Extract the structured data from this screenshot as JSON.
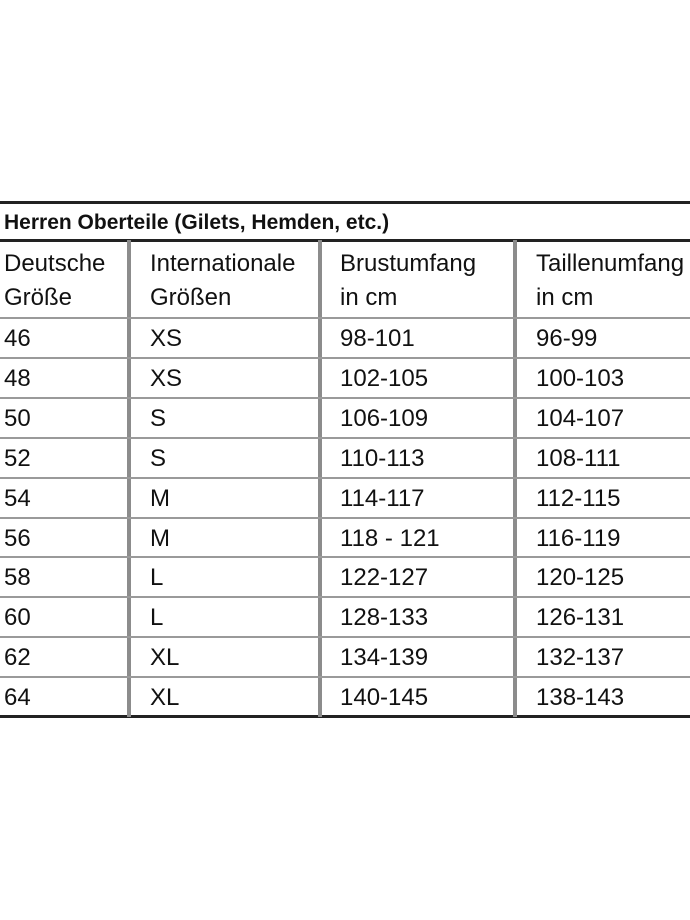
{
  "table": {
    "title": "Herren Oberteile (Gilets, Hemden, etc.)",
    "header": [
      [
        "Deutsche",
        "Größe"
      ],
      [
        "Internationale",
        "Größen"
      ],
      [
        "Brustumfang",
        "in cm"
      ],
      [
        "Taillenumfang",
        "in cm"
      ]
    ],
    "rows": [
      [
        "46",
        "XS",
        "98-101",
        "96-99"
      ],
      [
        "48",
        "XS",
        "102-105",
        "100-103"
      ],
      [
        "50",
        "S",
        "106-109",
        "104-107"
      ],
      [
        "52",
        "S",
        "110-113",
        "108-111"
      ],
      [
        "54",
        "M",
        "114-117",
        "112-115"
      ],
      [
        "56",
        "M",
        "118 - 121",
        "116-119"
      ],
      [
        "58",
        "L",
        "122-127",
        "120-125"
      ],
      [
        "60",
        "L",
        "128-133",
        "126-131"
      ],
      [
        "62",
        "XL",
        "134-139",
        "132-137"
      ],
      [
        "64",
        "XL",
        "140-145",
        "138-143"
      ]
    ]
  }
}
